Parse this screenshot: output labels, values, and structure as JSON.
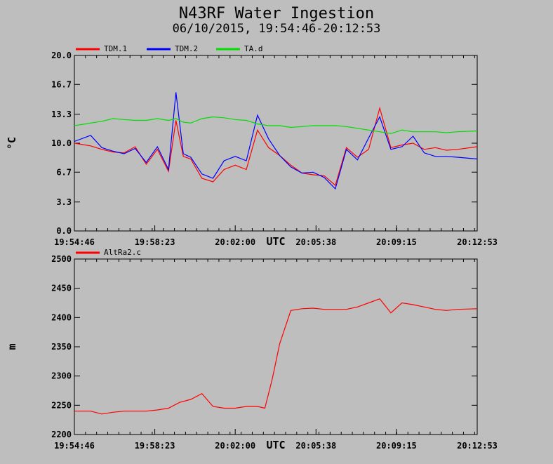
{
  "title": "N43RF Water Ingestion",
  "subtitle": "06/10/2015, 19:54:46-20:12:53",
  "colors": {
    "background": "#bebebe",
    "red": "#ff0000",
    "blue": "#0000ff",
    "green": "#00e000"
  },
  "chart_data": [
    {
      "type": "line",
      "ylabel": "°C",
      "xlabel": "UTC",
      "ylim": [
        0.0,
        20.0
      ],
      "yticks": [
        "0.0",
        "3.3",
        "6.7",
        "10.0",
        "13.3",
        "16.7",
        "20.0"
      ],
      "xlim": [
        "19:54:46",
        "20:12:53"
      ],
      "xticks": [
        "19:54:46",
        "19:58:23",
        "20:02:00",
        "20:05:38",
        "20:09:15",
        "20:12:53"
      ],
      "legend_placement": "top",
      "grid": false,
      "x": [
        "19:54:46",
        "19:55:30",
        "19:56:00",
        "19:56:30",
        "19:57:00",
        "19:57:30",
        "19:58:00",
        "19:58:30",
        "19:59:00",
        "19:59:20",
        "19:59:40",
        "20:00:00",
        "20:00:30",
        "20:01:00",
        "20:01:30",
        "20:02:00",
        "20:02:30",
        "20:03:00",
        "20:03:30",
        "20:04:00",
        "20:04:30",
        "20:05:00",
        "20:05:30",
        "20:06:00",
        "20:06:30",
        "20:07:00",
        "20:07:30",
        "20:08:00",
        "20:08:30",
        "20:09:00",
        "20:09:30",
        "20:10:00",
        "20:10:30",
        "20:11:00",
        "20:11:30",
        "20:12:00",
        "20:12:53"
      ],
      "series": [
        {
          "name": "TDM.1",
          "color": "#ff0000",
          "values": [
            10.0,
            9.7,
            9.3,
            9.0,
            8.9,
            9.6,
            7.6,
            9.3,
            6.8,
            12.6,
            8.5,
            8.2,
            6.0,
            5.6,
            7.0,
            7.5,
            7.0,
            11.5,
            9.5,
            8.6,
            7.5,
            6.6,
            6.4,
            6.3,
            5.2,
            9.5,
            8.4,
            9.3,
            14.0,
            9.5,
            9.8,
            10.0,
            9.3,
            9.5,
            9.2,
            9.3,
            9.6
          ]
        },
        {
          "name": "TDM.2",
          "color": "#0000ff",
          "values": [
            10.2,
            10.9,
            9.5,
            9.1,
            8.8,
            9.4,
            7.8,
            9.6,
            7.0,
            15.8,
            8.8,
            8.4,
            6.5,
            6.0,
            8.0,
            8.5,
            8.0,
            13.2,
            10.5,
            8.6,
            7.3,
            6.6,
            6.7,
            6.1,
            4.8,
            9.3,
            8.1,
            10.6,
            13.0,
            9.3,
            9.6,
            10.8,
            8.9,
            8.5,
            8.5,
            8.4,
            8.2
          ]
        },
        {
          "name": "TA.d",
          "color": "#00e000",
          "values": [
            12.0,
            12.3,
            12.5,
            12.8,
            12.7,
            12.6,
            12.6,
            12.8,
            12.6,
            12.8,
            12.4,
            12.3,
            12.8,
            13.0,
            12.9,
            12.7,
            12.6,
            12.2,
            12.0,
            12.0,
            11.8,
            11.9,
            12.0,
            12.0,
            12.0,
            11.9,
            11.7,
            11.5,
            11.3,
            11.1,
            11.5,
            11.3,
            11.3,
            11.3,
            11.2,
            11.3,
            11.4
          ]
        }
      ]
    },
    {
      "type": "line",
      "ylabel": "m",
      "xlabel": "UTC",
      "ylim": [
        2200,
        2500
      ],
      "yticks": [
        "2200",
        "2250",
        "2300",
        "2350",
        "2400",
        "2450",
        "2500"
      ],
      "xlim": [
        "19:54:46",
        "20:12:53"
      ],
      "xticks": [
        "19:54:46",
        "19:58:23",
        "20:02:00",
        "20:05:38",
        "20:09:15",
        "20:12:53"
      ],
      "legend_placement": "top",
      "grid": false,
      "x": [
        "19:54:46",
        "19:55:30",
        "19:56:00",
        "19:56:30",
        "19:57:00",
        "19:57:30",
        "19:58:00",
        "19:58:30",
        "19:59:00",
        "19:59:30",
        "20:00:00",
        "20:00:30",
        "20:01:00",
        "20:01:30",
        "20:02:00",
        "20:02:30",
        "20:03:00",
        "20:03:20",
        "20:03:40",
        "20:04:00",
        "20:04:30",
        "20:05:00",
        "20:05:30",
        "20:06:00",
        "20:06:30",
        "20:07:00",
        "20:07:30",
        "20:08:00",
        "20:08:30",
        "20:09:00",
        "20:09:30",
        "20:10:00",
        "20:10:30",
        "20:11:00",
        "20:11:30",
        "20:12:00",
        "20:12:53"
      ],
      "series": [
        {
          "name": "AltRa2.c",
          "color": "#ff0000",
          "values": [
            2240,
            2240,
            2235,
            2238,
            2240,
            2240,
            2240,
            2242,
            2245,
            2255,
            2260,
            2270,
            2248,
            2245,
            2245,
            2248,
            2248,
            2245,
            2295,
            2355,
            2412,
            2415,
            2416,
            2414,
            2414,
            2414,
            2418,
            2425,
            2432,
            2408,
            2425,
            2422,
            2418,
            2414,
            2412,
            2414,
            2415
          ]
        }
      ]
    }
  ]
}
